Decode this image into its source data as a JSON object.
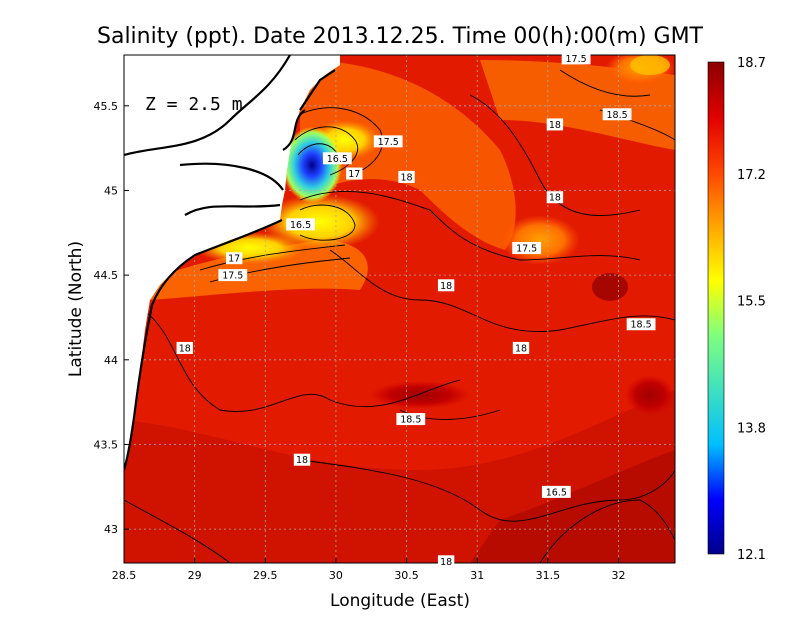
{
  "chart_data": {
    "type": "heatmap",
    "title": "Salinity (ppt). Date 2013.12.25. Time 00(h):00(m) GMT",
    "xlabel": "Longitude (East)",
    "ylabel": "Latitude (North)",
    "annotation": "Z = 2.5 m",
    "xlim": [
      28.5,
      32.4
    ],
    "ylim": [
      42.8,
      45.8
    ],
    "x_ticks": [
      28.5,
      29,
      29.5,
      30,
      30.5,
      31,
      31.5,
      32
    ],
    "x_tick_labels": [
      "28.5",
      "29",
      "29.5",
      "30",
      "30.5",
      "31",
      "31.5",
      "32"
    ],
    "y_ticks": [
      43,
      43.5,
      44,
      44.5,
      45,
      45.5
    ],
    "y_tick_labels": [
      "43",
      "43.5",
      "44",
      "44.5",
      "45",
      "45.5"
    ],
    "grid": true,
    "colorbar": {
      "min": 12.1,
      "max": 18.7,
      "ticks": [
        18.7,
        17.2,
        15.5,
        13.8,
        12.1
      ],
      "tick_labels": [
        "18.7",
        "17.2",
        "15.5",
        "13.8",
        "12.1"
      ],
      "colors": [
        "#00008b",
        "#0000ff",
        "#00bfff",
        "#40e0c0",
        "#7fff7f",
        "#ffff00",
        "#ffa500",
        "#ff4500",
        "#e00000",
        "#8b0000"
      ]
    },
    "contour_labels": [
      {
        "text": "17.5",
        "lon": 31.7,
        "lat": 45.78
      },
      {
        "text": "18",
        "lon": 31.55,
        "lat": 45.39
      },
      {
        "text": "18.5",
        "lon": 31.99,
        "lat": 45.45
      },
      {
        "text": "17.5",
        "lon": 30.37,
        "lat": 45.29
      },
      {
        "text": "16.5",
        "lon": 30.01,
        "lat": 45.19
      },
      {
        "text": "17",
        "lon": 30.13,
        "lat": 45.1
      },
      {
        "text": "18",
        "lon": 30.5,
        "lat": 45.08
      },
      {
        "text": "18",
        "lon": 31.55,
        "lat": 44.96
      },
      {
        "text": "16.5",
        "lon": 29.75,
        "lat": 44.8
      },
      {
        "text": "17.5",
        "lon": 31.35,
        "lat": 44.66
      },
      {
        "text": "17",
        "lon": 29.28,
        "lat": 44.6
      },
      {
        "text": "17.5",
        "lon": 29.27,
        "lat": 44.5
      },
      {
        "text": "18",
        "lon": 30.78,
        "lat": 44.44
      },
      {
        "text": "18.5",
        "lon": 32.16,
        "lat": 44.21
      },
      {
        "text": "18",
        "lon": 28.93,
        "lat": 44.07
      },
      {
        "text": "18",
        "lon": 31.31,
        "lat": 44.07
      },
      {
        "text": "18.5",
        "lon": 30.53,
        "lat": 43.65
      },
      {
        "text": "18",
        "lon": 29.76,
        "lat": 43.41
      },
      {
        "text": "16.5",
        "lon": 31.56,
        "lat": 43.22
      },
      {
        "text": "18",
        "lon": 30.78,
        "lat": 42.81
      }
    ]
  }
}
